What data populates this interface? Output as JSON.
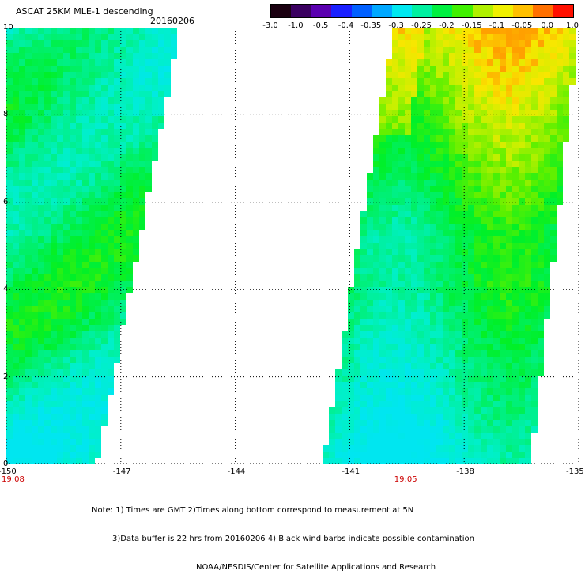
{
  "header": {
    "title": "ASCAT 25KM MLE-1 descending",
    "date": "20160206"
  },
  "colorbar": {
    "labels": [
      "-3.0",
      "-1.0",
      "-0.5",
      "-0.4",
      "-0.35",
      "-0.3",
      "-0.25",
      "-0.2",
      "-0.15",
      "-0.1",
      "-0.05",
      "0.0",
      "1.0"
    ],
    "colors": [
      "#1a0010",
      "#3a0060",
      "#5a00b0",
      "#1a20ff",
      "#0060ff",
      "#00a8ff",
      "#00e8f0",
      "#00f0a0",
      "#00f040",
      "#40f000",
      "#b0f000",
      "#f0f000",
      "#ffc000",
      "#ff7000",
      "#ff1000"
    ]
  },
  "map": {
    "x_ticks": [
      "-150",
      "-147",
      "-144",
      "-141",
      "-138",
      "-135"
    ],
    "y_ticks": [
      "0",
      "2",
      "4",
      "6",
      "8",
      "10"
    ],
    "time_labels": [
      "19:08",
      "19:05"
    ],
    "xlim": [
      -150,
      -135
    ],
    "ylim": [
      0,
      10
    ]
  },
  "notes": {
    "line1": "Note: 1) Times are GMT 2)Times along bottom correspond to measurement at 5N",
    "line2": "3)Data buffer is 22 hrs from 20160206 4) Black wind barbs indicate possible contamination",
    "line3": "NOAA/NESDIS/Center for Satellite Applications and Research"
  }
}
